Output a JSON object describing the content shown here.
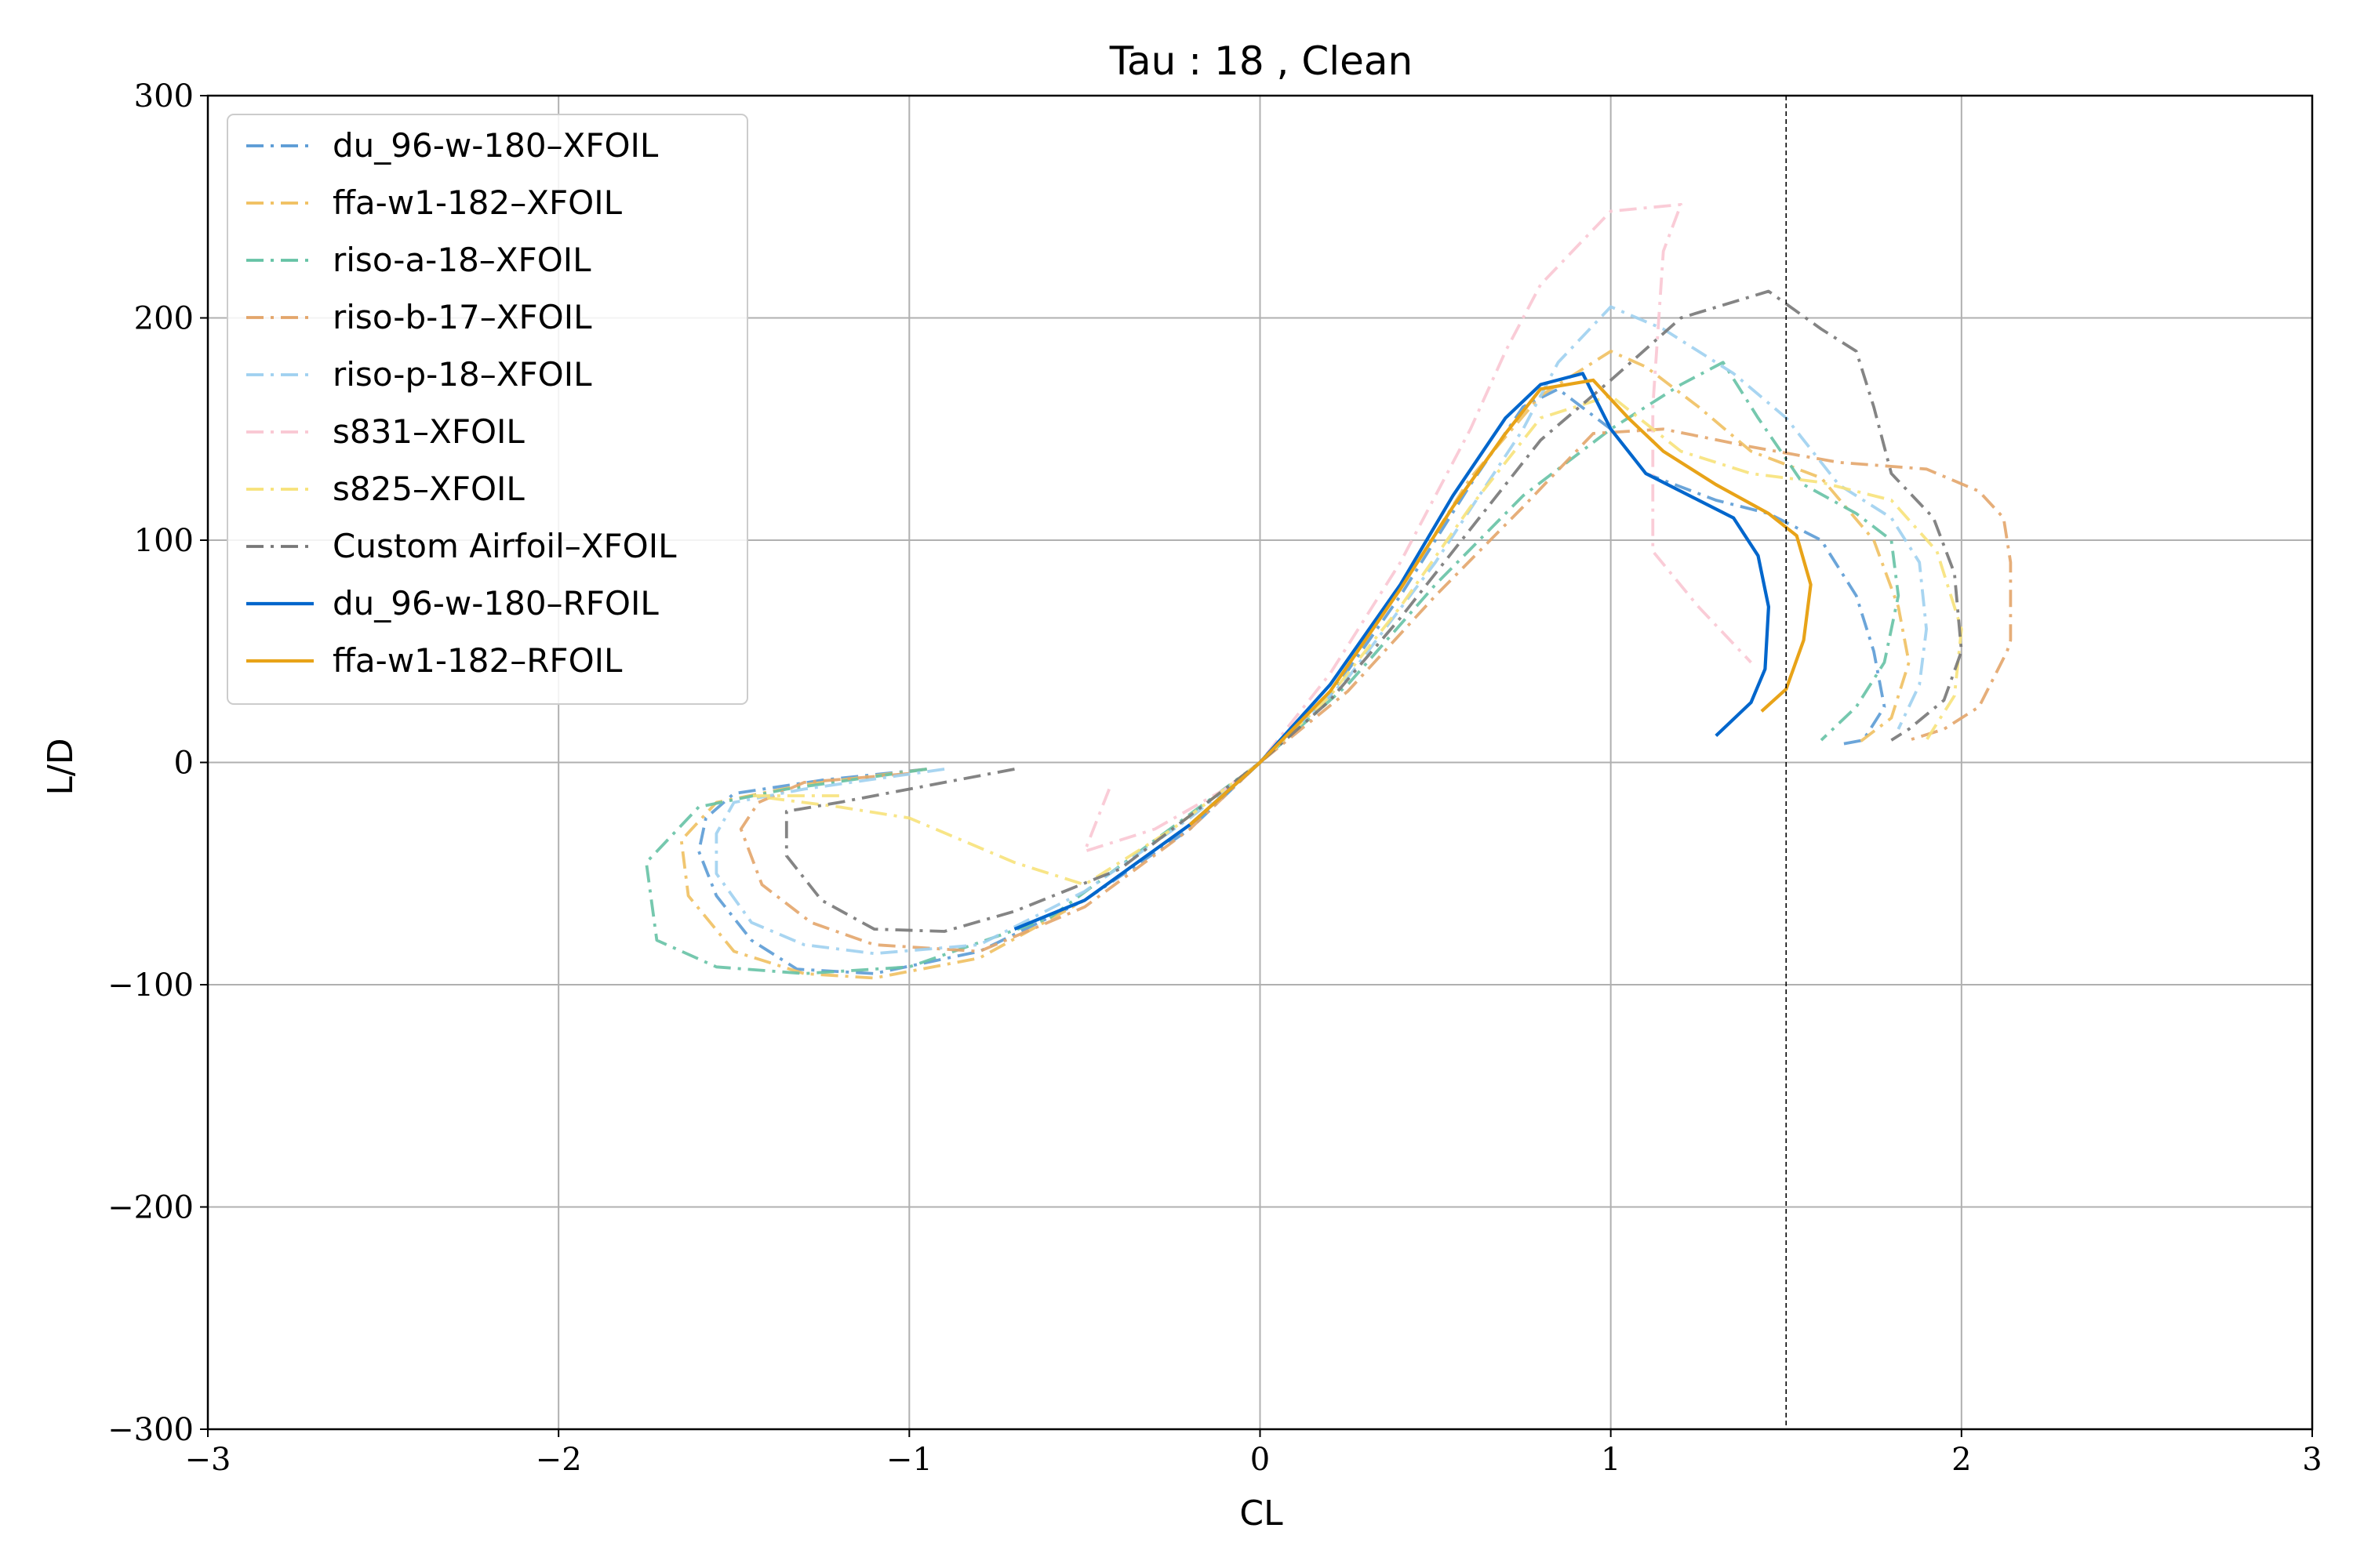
{
  "chart_data": {
    "type": "line",
    "title": "Tau : 18 , Clean",
    "xlabel": "CL",
    "ylabel": "L/D",
    "xlim": [
      -3,
      3
    ],
    "ylim": [
      -300,
      300
    ],
    "xticks": [
      -3,
      -2,
      -1,
      0,
      1,
      2,
      3
    ],
    "yticks": [
      -300,
      -200,
      -100,
      0,
      100,
      200,
      300
    ],
    "xtick_labels": [
      "−3",
      "−2",
      "−1",
      "0",
      "1",
      "2",
      "3"
    ],
    "ytick_labels": [
      "−300",
      "−200",
      "−100",
      "0",
      "100",
      "200",
      "300"
    ],
    "grid": true,
    "legend_position": "upper-left",
    "vline": {
      "x": 1.5,
      "style": "dashed",
      "color": "#000000"
    },
    "series": [
      {
        "name": "du_96-w-180–XFOIL",
        "color": "#5b9bd5",
        "style": "dashdot",
        "points": [
          [
            -0.95,
            -3
          ],
          [
            -1.25,
            -8
          ],
          [
            -1.5,
            -14
          ],
          [
            -1.58,
            -25
          ],
          [
            -1.6,
            -40
          ],
          [
            -1.55,
            -60
          ],
          [
            -1.45,
            -80
          ],
          [
            -1.32,
            -93
          ],
          [
            -1.1,
            -95
          ],
          [
            -0.8,
            -85
          ],
          [
            -0.5,
            -62
          ],
          [
            -0.2,
            -30
          ],
          [
            0,
            0
          ],
          [
            0.2,
            30
          ],
          [
            0.4,
            75
          ],
          [
            0.6,
            125
          ],
          [
            0.75,
            160
          ],
          [
            0.85,
            168
          ],
          [
            1.0,
            150
          ],
          [
            1.1,
            130
          ],
          [
            1.3,
            118
          ],
          [
            1.45,
            112
          ],
          [
            1.6,
            100
          ],
          [
            1.7,
            75
          ],
          [
            1.75,
            50
          ],
          [
            1.78,
            25
          ],
          [
            1.72,
            10
          ],
          [
            1.65,
            8
          ]
        ]
      },
      {
        "name": "ffa-w1-182–XFOIL",
        "color": "#f0c060",
        "style": "dashdot",
        "points": [
          [
            -0.95,
            -3
          ],
          [
            -1.3,
            -10
          ],
          [
            -1.55,
            -18
          ],
          [
            -1.65,
            -35
          ],
          [
            -1.63,
            -60
          ],
          [
            -1.5,
            -85
          ],
          [
            -1.3,
            -95
          ],
          [
            -1.1,
            -97
          ],
          [
            -0.8,
            -88
          ],
          [
            -0.5,
            -62
          ],
          [
            -0.2,
            -28
          ],
          [
            0,
            0
          ],
          [
            0.2,
            32
          ],
          [
            0.4,
            78
          ],
          [
            0.6,
            128
          ],
          [
            0.8,
            165
          ],
          [
            1.0,
            185
          ],
          [
            1.1,
            178
          ],
          [
            1.25,
            160
          ],
          [
            1.4,
            140
          ],
          [
            1.6,
            128
          ],
          [
            1.75,
            100
          ],
          [
            1.82,
            70
          ],
          [
            1.85,
            45
          ],
          [
            1.8,
            20
          ],
          [
            1.7,
            8
          ]
        ]
      },
      {
        "name": "riso-a-18–XFOIL",
        "color": "#66c2a5",
        "style": "dashdot",
        "points": [
          [
            -0.95,
            -3
          ],
          [
            -1.35,
            -12
          ],
          [
            -1.6,
            -20
          ],
          [
            -1.75,
            -45
          ],
          [
            -1.72,
            -80
          ],
          [
            -1.55,
            -92
          ],
          [
            -1.3,
            -95
          ],
          [
            -1.0,
            -92
          ],
          [
            -0.6,
            -70
          ],
          [
            -0.3,
            -35
          ],
          [
            0,
            0
          ],
          [
            0.25,
            35
          ],
          [
            0.5,
            80
          ],
          [
            0.75,
            120
          ],
          [
            1.0,
            150
          ],
          [
            1.2,
            170
          ],
          [
            1.32,
            180
          ],
          [
            1.42,
            155
          ],
          [
            1.55,
            125
          ],
          [
            1.7,
            112
          ],
          [
            1.8,
            100
          ],
          [
            1.82,
            75
          ],
          [
            1.78,
            45
          ],
          [
            1.7,
            25
          ],
          [
            1.6,
            10
          ]
        ]
      },
      {
        "name": "riso-b-17–XFOIL",
        "color": "#e3a56a",
        "style": "dashdot",
        "points": [
          [
            -1.0,
            -5
          ],
          [
            -1.3,
            -9
          ],
          [
            -1.43,
            -18
          ],
          [
            -1.48,
            -30
          ],
          [
            -1.42,
            -55
          ],
          [
            -1.28,
            -72
          ],
          [
            -1.1,
            -82
          ],
          [
            -0.8,
            -85
          ],
          [
            -0.5,
            -65
          ],
          [
            -0.2,
            -30
          ],
          [
            0,
            0
          ],
          [
            0.25,
            32
          ],
          [
            0.5,
            75
          ],
          [
            0.75,
            115
          ],
          [
            0.95,
            148
          ],
          [
            1.15,
            150
          ],
          [
            1.4,
            142
          ],
          [
            1.65,
            135
          ],
          [
            1.9,
            132
          ],
          [
            2.05,
            122
          ],
          [
            2.12,
            110
          ],
          [
            2.14,
            90
          ],
          [
            2.14,
            55
          ],
          [
            2.13,
            50
          ],
          [
            2.05,
            25
          ],
          [
            1.95,
            15
          ],
          [
            1.85,
            10
          ]
        ]
      },
      {
        "name": "riso-p-18–XFOIL",
        "color": "#9fd0f0",
        "style": "dashdot",
        "points": [
          [
            -0.9,
            -3
          ],
          [
            -1.3,
            -12
          ],
          [
            -1.5,
            -18
          ],
          [
            -1.55,
            -32
          ],
          [
            -1.55,
            -50
          ],
          [
            -1.45,
            -72
          ],
          [
            -1.3,
            -82
          ],
          [
            -1.1,
            -86
          ],
          [
            -0.8,
            -82
          ],
          [
            -0.5,
            -58
          ],
          [
            -0.2,
            -25
          ],
          [
            0,
            0
          ],
          [
            0.25,
            38
          ],
          [
            0.5,
            90
          ],
          [
            0.75,
            150
          ],
          [
            0.85,
            180
          ],
          [
            1.0,
            205
          ],
          [
            1.15,
            195
          ],
          [
            1.35,
            175
          ],
          [
            1.5,
            155
          ],
          [
            1.65,
            125
          ],
          [
            1.8,
            110
          ],
          [
            1.88,
            90
          ],
          [
            1.9,
            60
          ],
          [
            1.88,
            35
          ],
          [
            1.82,
            15
          ]
        ]
      },
      {
        "name": "s831–XFOIL",
        "color": "#f9c7d3",
        "style": "dashdot",
        "points": [
          [
            -0.43,
            -12
          ],
          [
            -0.5,
            -40
          ],
          [
            -0.3,
            -30
          ],
          [
            -0.1,
            -12
          ],
          [
            0,
            0
          ],
          [
            0.2,
            40
          ],
          [
            0.4,
            90
          ],
          [
            0.6,
            150
          ],
          [
            0.7,
            185
          ],
          [
            0.8,
            215
          ],
          [
            1.0,
            248
          ],
          [
            1.2,
            251
          ],
          [
            1.15,
            230
          ],
          [
            1.12,
            160
          ],
          [
            1.12,
            95
          ],
          [
            1.25,
            70
          ],
          [
            1.4,
            45
          ]
        ]
      },
      {
        "name": "s825–XFOIL",
        "color": "#f7e27a",
        "style": "dashdot",
        "points": [
          [
            -1.2,
            -15
          ],
          [
            -1.45,
            -15
          ],
          [
            -1.2,
            -20
          ],
          [
            -1.0,
            -25
          ],
          [
            -0.7,
            -45
          ],
          [
            -0.5,
            -55
          ],
          [
            -0.25,
            -30
          ],
          [
            0,
            0
          ],
          [
            0.2,
            30
          ],
          [
            0.4,
            70
          ],
          [
            0.6,
            115
          ],
          [
            0.8,
            155
          ],
          [
            1.0,
            165
          ],
          [
            1.2,
            140
          ],
          [
            1.4,
            130
          ],
          [
            1.6,
            126
          ],
          [
            1.8,
            118
          ],
          [
            1.93,
            95
          ],
          [
            2.0,
            60
          ],
          [
            1.98,
            30
          ],
          [
            1.9,
            10
          ]
        ]
      },
      {
        "name": "Custom Airfoil–XFOIL",
        "color": "#777777",
        "style": "dashdot",
        "points": [
          [
            -0.7,
            -3
          ],
          [
            -1.0,
            -12
          ],
          [
            -1.2,
            -18
          ],
          [
            -1.35,
            -22
          ],
          [
            -1.35,
            -42
          ],
          [
            -1.25,
            -62
          ],
          [
            -1.1,
            -75
          ],
          [
            -0.9,
            -76
          ],
          [
            -0.7,
            -67
          ],
          [
            -0.4,
            -48
          ],
          [
            -0.2,
            -24
          ],
          [
            0,
            0
          ],
          [
            0.2,
            28
          ],
          [
            0.4,
            65
          ],
          [
            0.6,
            105
          ],
          [
            0.8,
            145
          ],
          [
            1.0,
            172
          ],
          [
            1.2,
            200
          ],
          [
            1.45,
            212
          ],
          [
            1.6,
            195
          ],
          [
            1.7,
            185
          ],
          [
            1.75,
            160
          ],
          [
            1.8,
            130
          ],
          [
            1.92,
            110
          ],
          [
            1.98,
            85
          ],
          [
            2.0,
            50
          ],
          [
            1.95,
            28
          ],
          [
            1.85,
            15
          ],
          [
            1.8,
            10
          ]
        ]
      },
      {
        "name": "du_96-w-180–RFOIL",
        "color": "#0066cc",
        "style": "solid",
        "points": [
          [
            -0.7,
            -75
          ],
          [
            -0.5,
            -62
          ],
          [
            -0.2,
            -28
          ],
          [
            0,
            0
          ],
          [
            0.2,
            35
          ],
          [
            0.4,
            80
          ],
          [
            0.55,
            120
          ],
          [
            0.7,
            155
          ],
          [
            0.8,
            170
          ],
          [
            0.92,
            175
          ],
          [
            1.0,
            150
          ],
          [
            1.1,
            130
          ],
          [
            1.25,
            118
          ],
          [
            1.35,
            110
          ],
          [
            1.42,
            93
          ],
          [
            1.45,
            70
          ],
          [
            1.44,
            42
          ],
          [
            1.4,
            27
          ],
          [
            1.34,
            18
          ],
          [
            1.3,
            12
          ]
        ]
      },
      {
        "name": "ffa-w1-182–RFOIL",
        "color": "#e8a318",
        "style": "solid",
        "points": [
          [
            -0.2,
            -28
          ],
          [
            0,
            0
          ],
          [
            0.2,
            32
          ],
          [
            0.4,
            78
          ],
          [
            0.55,
            115
          ],
          [
            0.7,
            148
          ],
          [
            0.8,
            168
          ],
          [
            0.95,
            172
          ],
          [
            1.05,
            155
          ],
          [
            1.15,
            140
          ],
          [
            1.3,
            125
          ],
          [
            1.45,
            112
          ],
          [
            1.53,
            102
          ],
          [
            1.57,
            80
          ],
          [
            1.55,
            55
          ],
          [
            1.5,
            33
          ],
          [
            1.43,
            23
          ]
        ]
      }
    ]
  }
}
